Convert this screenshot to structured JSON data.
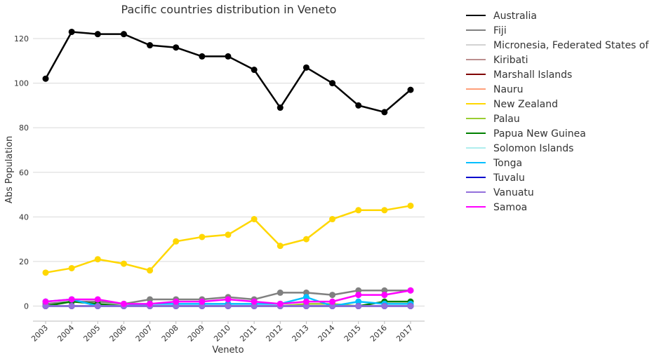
{
  "chart_data": {
    "type": "line",
    "title": "Pacific countries distribution in Veneto",
    "xlabel": "Veneto",
    "ylabel": "Abs Population",
    "ylim": [
      -7,
      131
    ],
    "yticks": [
      0,
      20,
      40,
      60,
      80,
      100,
      120
    ],
    "grid": "horizontal",
    "legend_position": "outside-right",
    "categories": [
      "2003",
      "2004",
      "2005",
      "2006",
      "2007",
      "2008",
      "2009",
      "2010",
      "2011",
      "2012",
      "2013",
      "2014",
      "2015",
      "2016",
      "2017"
    ],
    "series": [
      {
        "name": "Australia",
        "color": "#000000",
        "values": [
          102,
          123,
          122,
          122,
          117,
          116,
          112,
          112,
          106,
          89,
          107,
          100,
          90,
          87,
          97
        ]
      },
      {
        "name": "Fiji",
        "color": "#808080",
        "values": [
          1,
          2,
          2,
          1,
          3,
          3,
          3,
          4,
          3,
          6,
          6,
          5,
          7,
          7,
          7
        ]
      },
      {
        "name": "Micronesia, Federated States of",
        "color": "#d3d3d3",
        "values": [
          0,
          0,
          0,
          0,
          0,
          0,
          0,
          0,
          0,
          0,
          0,
          0,
          0,
          0,
          0
        ]
      },
      {
        "name": "Kiribati",
        "color": "#bc8f8f",
        "values": [
          0,
          0,
          0,
          0,
          0,
          0,
          0,
          0,
          0,
          0,
          0,
          0,
          0,
          0,
          0
        ]
      },
      {
        "name": "Marshall Islands",
        "color": "#800000",
        "values": [
          0,
          0,
          0,
          0,
          0,
          0,
          0,
          0,
          0,
          0,
          0,
          0,
          0,
          0,
          0
        ]
      },
      {
        "name": "Nauru",
        "color": "#ffa07a",
        "values": [
          0,
          0,
          0,
          0,
          0,
          0,
          0,
          0,
          0,
          0,
          0,
          0,
          0,
          0,
          0
        ]
      },
      {
        "name": "New Zealand",
        "color": "#ffd700",
        "values": [
          15,
          17,
          21,
          19,
          16,
          29,
          31,
          32,
          39,
          27,
          30,
          39,
          43,
          43,
          45
        ]
      },
      {
        "name": "Palau",
        "color": "#9acd32",
        "values": [
          0,
          0,
          0,
          0,
          0,
          0,
          0,
          0,
          0,
          0,
          1,
          1,
          0,
          0,
          0
        ]
      },
      {
        "name": "Papua New Guinea",
        "color": "#008000",
        "values": [
          0,
          2,
          1,
          0,
          0,
          0,
          0,
          0,
          0,
          0,
          0,
          0,
          0,
          2,
          2
        ]
      },
      {
        "name": "Solomon Islands",
        "color": "#afeeee",
        "values": [
          0,
          0,
          0,
          0,
          0,
          0,
          0,
          0,
          0,
          0,
          0,
          0,
          0,
          0,
          0
        ]
      },
      {
        "name": "Tonga",
        "color": "#00bfff",
        "values": [
          2,
          3,
          0,
          0,
          1,
          1,
          1,
          1,
          1,
          1,
          4,
          0,
          2,
          1,
          1
        ]
      },
      {
        "name": "Tuvalu",
        "color": "#0000cd",
        "values": [
          0,
          0,
          0,
          0,
          0,
          0,
          0,
          0,
          0,
          0,
          0,
          0,
          0,
          0,
          0
        ]
      },
      {
        "name": "Vanuatu",
        "color": "#9370db",
        "values": [
          0,
          0,
          0,
          0,
          0,
          0,
          0,
          0,
          0,
          0,
          0,
          0,
          0,
          0,
          0
        ]
      },
      {
        "name": "Samoa",
        "color": "#ff00ff",
        "values": [
          2,
          3,
          3,
          1,
          1,
          2,
          2,
          3,
          2,
          1,
          2,
          2,
          5,
          5,
          7
        ]
      }
    ]
  }
}
